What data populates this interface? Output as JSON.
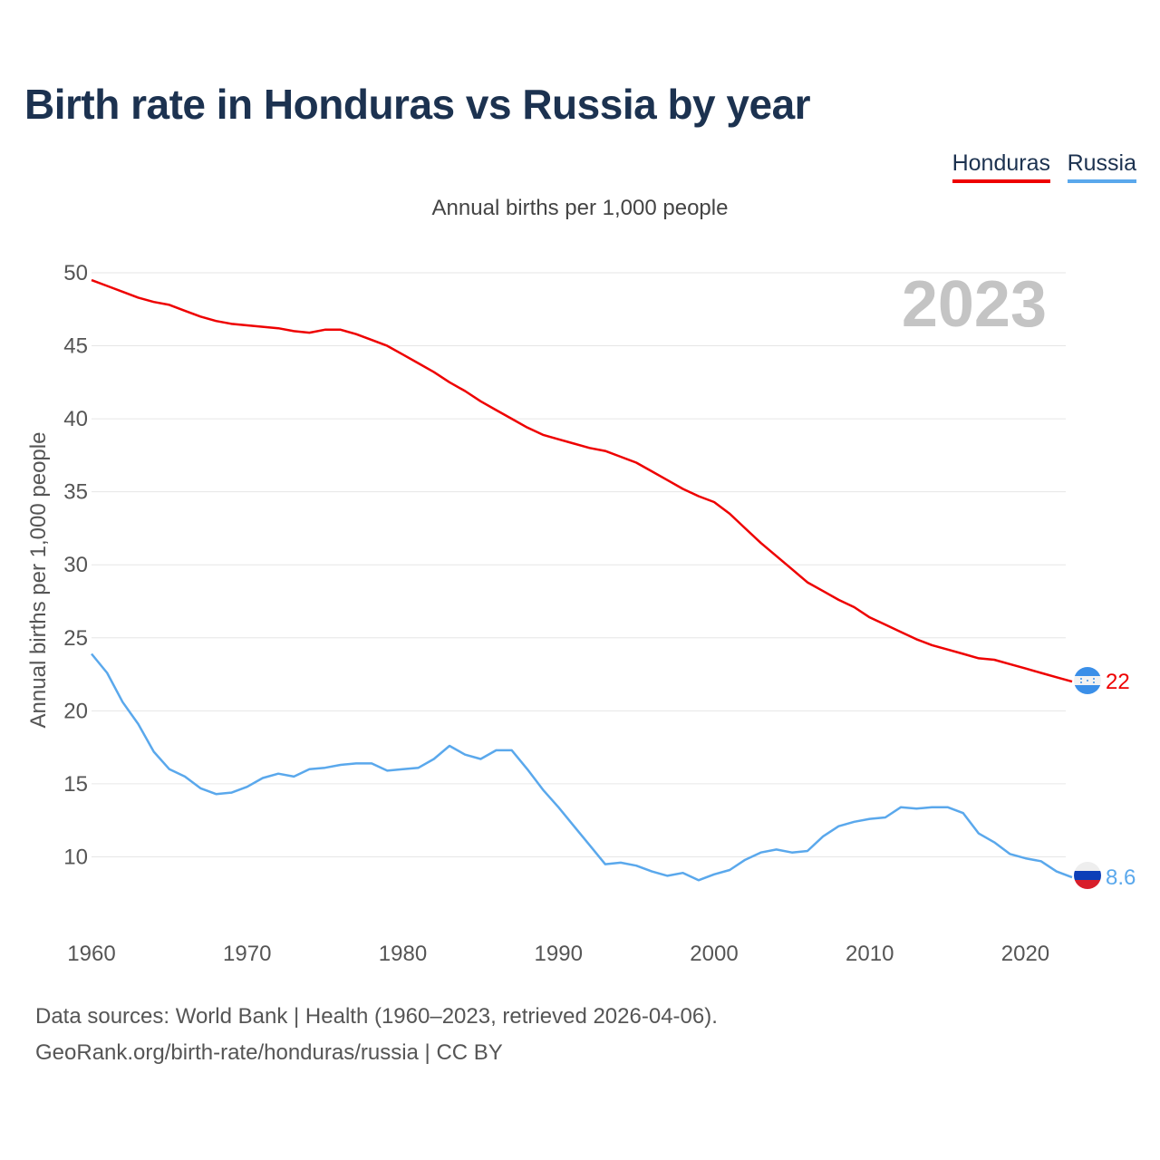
{
  "title": "Birth rate in Honduras vs Russia by year",
  "subtitle": "Annual births per 1,000 people",
  "legend": [
    {
      "name": "Honduras",
      "color": "#ee0000"
    },
    {
      "name": "Russia",
      "color": "#5aa8ec"
    }
  ],
  "year_label": "2023",
  "footer": {
    "line1": "Data sources: World Bank | Health (1960–2023, retrieved 2026-04-06).",
    "line2": "GeoRank.org/birth-rate/honduras/russia | CC BY"
  },
  "chart_data": {
    "type": "line",
    "title": "Birth rate in Honduras vs Russia by year",
    "xlabel": "",
    "ylabel": "Annual births per 1,000 people",
    "xlim": [
      1960,
      2023
    ],
    "ylim": [
      5.5,
      50
    ],
    "yticks": [
      10,
      15,
      20,
      25,
      30,
      35,
      40,
      45,
      50
    ],
    "xticks": [
      1960,
      1970,
      1980,
      1990,
      2000,
      2010,
      2020
    ],
    "grid": true,
    "legend_position": "top-right",
    "x": [
      1960,
      1961,
      1962,
      1963,
      1964,
      1965,
      1966,
      1967,
      1968,
      1969,
      1970,
      1971,
      1972,
      1973,
      1974,
      1975,
      1976,
      1977,
      1978,
      1979,
      1980,
      1981,
      1982,
      1983,
      1984,
      1985,
      1986,
      1987,
      1988,
      1989,
      1990,
      1991,
      1992,
      1993,
      1994,
      1995,
      1996,
      1997,
      1998,
      1999,
      2000,
      2001,
      2002,
      2003,
      2004,
      2005,
      2006,
      2007,
      2008,
      2009,
      2010,
      2011,
      2012,
      2013,
      2014,
      2015,
      2016,
      2017,
      2018,
      2019,
      2020,
      2021,
      2022,
      2023
    ],
    "series": [
      {
        "name": "Honduras",
        "color": "#ee0000",
        "end_label": "22",
        "values": [
          49.5,
          49.1,
          48.7,
          48.3,
          48.0,
          47.8,
          47.4,
          47.0,
          46.7,
          46.5,
          46.4,
          46.3,
          46.2,
          46.0,
          45.9,
          46.1,
          46.1,
          45.8,
          45.4,
          45.0,
          44.4,
          43.8,
          43.2,
          42.5,
          41.9,
          41.2,
          40.6,
          40.0,
          39.4,
          38.9,
          38.6,
          38.3,
          38.0,
          37.8,
          37.4,
          37.0,
          36.4,
          35.8,
          35.2,
          34.7,
          34.3,
          33.5,
          32.5,
          31.5,
          30.6,
          29.7,
          28.8,
          28.2,
          27.6,
          27.1,
          26.4,
          25.9,
          25.4,
          24.9,
          24.5,
          24.2,
          23.9,
          23.6,
          23.5,
          23.2,
          22.9,
          22.6,
          22.3,
          22.0
        ]
      },
      {
        "name": "Russia",
        "color": "#5aa8ec",
        "end_label": "8.6",
        "values": [
          23.9,
          22.6,
          20.6,
          19.1,
          17.2,
          16.0,
          15.5,
          14.7,
          14.3,
          14.4,
          14.8,
          15.4,
          15.7,
          15.5,
          16.0,
          16.1,
          16.3,
          16.4,
          16.4,
          15.9,
          16.0,
          16.1,
          16.7,
          17.6,
          17.0,
          16.7,
          17.3,
          17.3,
          16.0,
          14.6,
          13.4,
          12.1,
          10.8,
          9.5,
          9.6,
          9.4,
          9.0,
          8.7,
          8.9,
          8.4,
          8.8,
          9.1,
          9.8,
          10.3,
          10.5,
          10.3,
          10.4,
          11.4,
          12.1,
          12.4,
          12.6,
          12.7,
          13.4,
          13.3,
          13.4,
          13.4,
          13.0,
          11.6,
          11.0,
          10.2,
          9.9,
          9.7,
          9.0,
          8.6
        ]
      }
    ]
  }
}
